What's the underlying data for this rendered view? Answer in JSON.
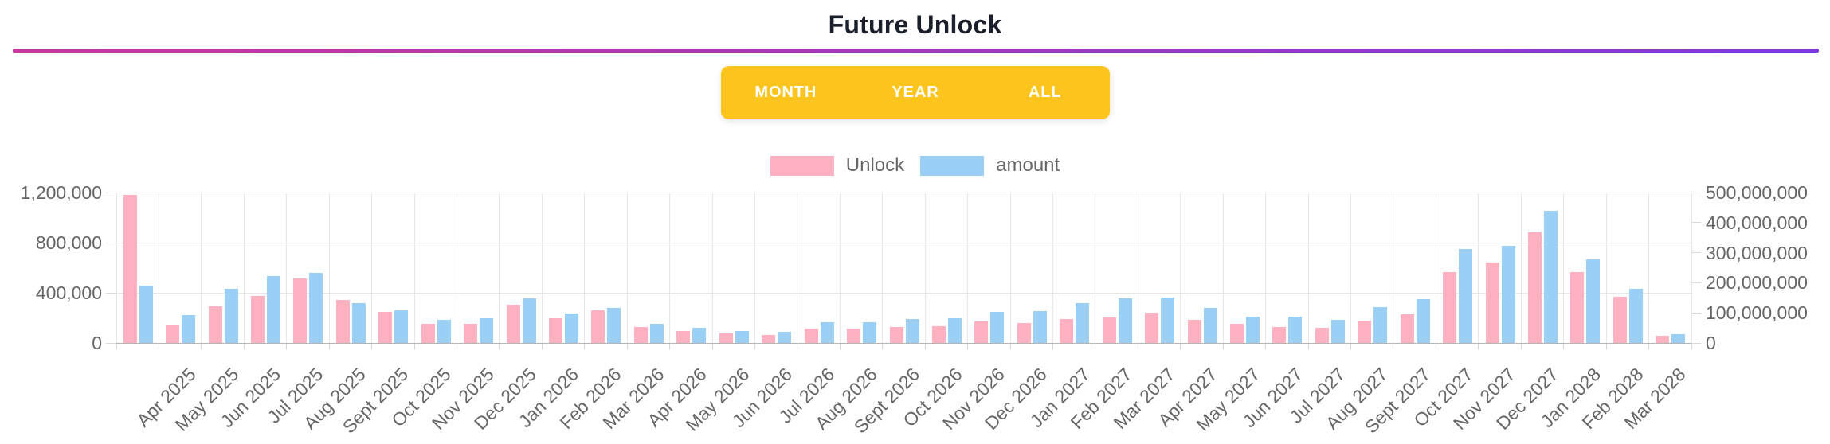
{
  "header": {
    "title": "Future Unlock"
  },
  "accent_divider": {
    "color_from": "#c9389a",
    "color_to": "#7b3bdc"
  },
  "range_selector": {
    "background": "#fcc41d",
    "buttons": [
      "MONTH",
      "YEAR",
      "ALL"
    ]
  },
  "legend": {
    "items": [
      {
        "label": "Unlock",
        "color": "#ffb1c1"
      },
      {
        "label": "amount",
        "color": "#9ad0f5"
      }
    ]
  },
  "chart_data": {
    "type": "bar",
    "title": "Future Unlock",
    "legend_position": "top",
    "grid": true,
    "x_label_rotation": -45,
    "categories": [
      "",
      "Apr 2025",
      "May 2025",
      "Jun 2025",
      "Jul 2025",
      "Aug 2025",
      "Sept 2025",
      "Oct 2025",
      "Nov 2025",
      "Dec 2025",
      "Jan 2026",
      "Feb 2026",
      "Mar 2026",
      "Apr 2026",
      "May 2026",
      "Jun 2026",
      "Jul 2026",
      "Aug 2026",
      "Sept 2026",
      "Oct 2026",
      "Nov 2026",
      "Dec 2026",
      "Jan 2027",
      "Feb 2027",
      "Mar 2027",
      "Apr 2027",
      "May 2027",
      "Jun 2027",
      "Jul 2027",
      "Aug 2027",
      "Sept 2027",
      "Oct 2027",
      "Nov 2027",
      "Dec 2027",
      "Jan 2028",
      "Feb 2028",
      "Mar 2028"
    ],
    "series": [
      {
        "name": "Unlock",
        "axis": "left",
        "color": "#ffb1c1",
        "values": [
          1180000,
          146000,
          293000,
          372000,
          514000,
          344000,
          245000,
          151000,
          151000,
          302000,
          196000,
          259000,
          125000,
          98000,
          74000,
          66000,
          115000,
          117000,
          125000,
          136000,
          170000,
          159000,
          189000,
          204000,
          240000,
          183000,
          153000,
          130000,
          121000,
          176000,
          229000,
          567000,
          641000,
          883000,
          567000,
          366000,
          57000
        ]
      },
      {
        "name": "amount",
        "axis": "right",
        "color": "#9ad0f5",
        "values": [
          190000000,
          92000000,
          181000000,
          221000000,
          233000000,
          133000000,
          109000000,
          78000000,
          82000000,
          148000000,
          99000000,
          116000000,
          64000000,
          50000000,
          39000000,
          37000000,
          68000000,
          70000000,
          79000000,
          83000000,
          102000000,
          105000000,
          133000000,
          147000000,
          150000000,
          116000000,
          86000000,
          88000000,
          78000000,
          120000000,
          145000000,
          313000000,
          324000000,
          440000000,
          277000000,
          180000000,
          28000000
        ]
      }
    ],
    "left_axis": {
      "min": 0,
      "max": 1200000,
      "tick_labels": [
        "0",
        "400,000",
        "800,000",
        "1,200,000"
      ]
    },
    "right_axis": {
      "min": 0,
      "max": 500000000,
      "tick_labels": [
        "0",
        "100,000,000",
        "200,000,000",
        "300,000,000",
        "400,000,000",
        "500,000,000"
      ]
    }
  }
}
